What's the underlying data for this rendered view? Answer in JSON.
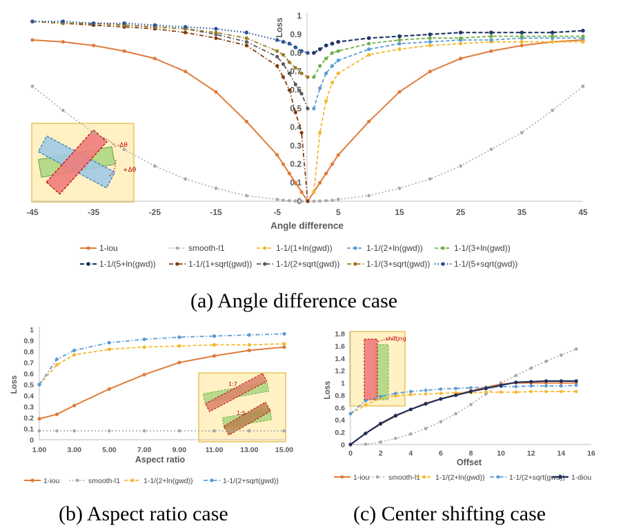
{
  "captions": {
    "a": "(a) Angle difference case",
    "b": "(b) Aspect ratio case",
    "c": "(c) Center shifting case"
  },
  "chart_data": [
    {
      "id": "a",
      "type": "line",
      "xlabel": "Angle difference",
      "ylabel": "Loss",
      "xlim": [
        -45,
        45
      ],
      "ylim": [
        0,
        1
      ],
      "xticks": [
        -45,
        -35,
        -25,
        -15,
        -5,
        5,
        15,
        25,
        35,
        45
      ],
      "xtick_labels": [
        "-45",
        "-35",
        "-25",
        "-15",
        "-5",
        "5",
        "15",
        "25",
        "35",
        "45"
      ],
      "yticks": [
        0,
        0.1,
        0.2,
        0.3,
        0.4,
        0.5,
        0.6,
        0.7,
        0.8,
        0.9,
        1
      ],
      "ytick_labels": [
        "0",
        "0.1",
        "0.2",
        "0.3",
        "0.4",
        "0.5",
        "0.6",
        "0.7",
        "0.8",
        "0.9",
        "1"
      ],
      "inset_labels": [
        "-Δθ",
        "+Δθ"
      ],
      "legend_position": "bottom",
      "series": [
        {
          "name": "1-iou",
          "color": "#E07B39",
          "dash": "",
          "width": 2,
          "marker": 2.6,
          "x": [
            -45,
            -40,
            -35,
            -30,
            -25,
            -20,
            -15,
            -10,
            -5,
            -4,
            -3,
            -2,
            -1,
            0,
            1,
            2,
            3,
            4,
            5,
            10,
            15,
            20,
            25,
            30,
            35,
            40,
            45
          ],
          "y": [
            0.87,
            0.86,
            0.84,
            0.81,
            0.77,
            0.7,
            0.59,
            0.43,
            0.25,
            0.2,
            0.15,
            0.1,
            0.05,
            0,
            0.05,
            0.1,
            0.15,
            0.2,
            0.25,
            0.43,
            0.59,
            0.7,
            0.77,
            0.81,
            0.84,
            0.86,
            0.87
          ]
        },
        {
          "name": "smooth-l1",
          "color": "#A8A8A8",
          "dash": "2 3",
          "width": 1.6,
          "marker": 2.4,
          "x": [
            -45,
            -40,
            -35,
            -30,
            -25,
            -20,
            -15,
            -10,
            -5,
            -4,
            -3,
            -2,
            -1,
            0,
            1,
            2,
            3,
            4,
            5,
            10,
            15,
            20,
            25,
            30,
            35,
            40,
            45
          ],
          "y": [
            0.62,
            0.49,
            0.37,
            0.28,
            0.19,
            0.12,
            0.07,
            0.03,
            0.01,
            0.005,
            0.003,
            0.001,
            0,
            0,
            0,
            0.001,
            0.003,
            0.005,
            0.01,
            0.03,
            0.07,
            0.12,
            0.19,
            0.28,
            0.37,
            0.49,
            0.62
          ]
        },
        {
          "name": "1-1/(1+ln(gwd))",
          "color": "#F5B82E",
          "dash": "5 3",
          "width": 1.8,
          "marker": 2.6,
          "x": [
            1,
            2,
            3,
            4,
            5,
            10,
            15,
            20,
            25,
            30,
            35,
            40,
            45
          ],
          "y": [
            0.05,
            0.37,
            0.54,
            0.64,
            0.69,
            0.79,
            0.82,
            0.84,
            0.85,
            0.86,
            0.86,
            0.86,
            0.86
          ]
        },
        {
          "name": "1-1/(2+ln(gwd))",
          "color": "#5B9BD5",
          "dash": "5 3",
          "width": 1.8,
          "marker": 2.6,
          "x": [
            1,
            2,
            3,
            4,
            5,
            10,
            15,
            20,
            25,
            30,
            35,
            40,
            45
          ],
          "y": [
            0.5,
            0.61,
            0.69,
            0.73,
            0.76,
            0.82,
            0.85,
            0.86,
            0.87,
            0.87,
            0.88,
            0.88,
            0.88
          ]
        },
        {
          "name": "1-1/(3+ln(gwd))",
          "color": "#70AD47",
          "dash": "5 3",
          "width": 1.8,
          "marker": 2.6,
          "x": [
            1,
            2,
            3,
            4,
            5,
            10,
            15,
            20,
            25,
            30,
            35,
            40,
            45
          ],
          "y": [
            0.67,
            0.73,
            0.77,
            0.8,
            0.81,
            0.85,
            0.87,
            0.88,
            0.88,
            0.89,
            0.89,
            0.89,
            0.89
          ]
        },
        {
          "name": "1-1/(5+ln(gwd))",
          "color": "#203864",
          "dash": "6 3",
          "width": 2.2,
          "marker": 2.8,
          "x": [
            1,
            2,
            3,
            4,
            5,
            10,
            15,
            20,
            25,
            30,
            35,
            40,
            45
          ],
          "y": [
            0.8,
            0.82,
            0.84,
            0.85,
            0.86,
            0.88,
            0.89,
            0.9,
            0.91,
            0.91,
            0.91,
            0.91,
            0.92
          ]
        },
        {
          "name": "1-1/(1+sqrt(gwd))",
          "color": "#843C0C",
          "dash": "6 3 1.5 3",
          "width": 1.8,
          "marker": 2.6,
          "x": [
            -45,
            -40,
            -35,
            -30,
            -25,
            -20,
            -15,
            -10,
            -5,
            -4,
            -3,
            -2,
            -1,
            0
          ],
          "y": [
            0.97,
            0.96,
            0.95,
            0.94,
            0.93,
            0.91,
            0.88,
            0.84,
            0.73,
            0.67,
            0.6,
            0.48,
            0.37,
            0
          ]
        },
        {
          "name": "1-1/(2+sqrt(gwd))",
          "color": "#595959",
          "dash": "6 3 1.5 3",
          "width": 1.8,
          "marker": 2.6,
          "x": [
            -45,
            -40,
            -35,
            -30,
            -25,
            -20,
            -15,
            -10,
            -5,
            -4,
            -3,
            -2,
            -1,
            0
          ],
          "y": [
            0.97,
            0.96,
            0.96,
            0.95,
            0.94,
            0.93,
            0.9,
            0.86,
            0.78,
            0.74,
            0.69,
            0.63,
            0.58,
            0.5
          ]
        },
        {
          "name": "1-1/(3+sqrt(gwd))",
          "color": "#9C7A1F",
          "dash": "6 3 1.5 3",
          "width": 1.8,
          "marker": 2.6,
          "x": [
            -45,
            -40,
            -35,
            -30,
            -25,
            -20,
            -15,
            -10,
            -5,
            -4,
            -3,
            -2,
            -1,
            0
          ],
          "y": [
            0.97,
            0.96,
            0.96,
            0.95,
            0.94,
            0.93,
            0.91,
            0.88,
            0.81,
            0.79,
            0.75,
            0.72,
            0.69,
            0.67
          ]
        },
        {
          "name": "1-1/(5+sqrt(gwd))",
          "color": "#2E5597",
          "dash": "1.5 3",
          "width": 2.2,
          "marker": 2.8,
          "x": [
            -45,
            -40,
            -35,
            -30,
            -25,
            -20,
            -15,
            -10,
            -5,
            -4,
            -3,
            -2,
            -1,
            0
          ],
          "y": [
            0.97,
            0.97,
            0.96,
            0.96,
            0.95,
            0.94,
            0.93,
            0.91,
            0.87,
            0.86,
            0.85,
            0.83,
            0.81,
            0.8
          ]
        }
      ]
    },
    {
      "id": "b",
      "type": "line",
      "xlabel": "Aspect ratio",
      "ylabel": "Loss",
      "xlim": [
        1,
        15
      ],
      "ylim": [
        0,
        1
      ],
      "xticks": [
        1,
        3,
        5,
        7,
        9,
        11,
        13,
        15
      ],
      "xtick_labels": [
        "1.00",
        "3.00",
        "5.00",
        "7.00",
        "9.00",
        "11.00",
        "13.00",
        "15.00"
      ],
      "yticks": [
        0,
        0.1,
        0.2,
        0.3,
        0.4,
        0.5,
        0.6,
        0.7,
        0.8,
        0.9,
        1
      ],
      "ytick_labels": [
        "0",
        "0.1",
        "0.2",
        "0.3",
        "0.4",
        "0.5",
        "0.6",
        "0.7",
        "0.8",
        "0.9",
        "1"
      ],
      "inset_labels": [
        "1:7",
        "1:5"
      ],
      "legend_position": "bottom",
      "series": [
        {
          "name": "1-iou",
          "color": "#E07B39",
          "dash": "",
          "width": 2,
          "marker": 2.6,
          "x": [
            1,
            2,
            3,
            5,
            7,
            9,
            11,
            13,
            15
          ],
          "y": [
            0.19,
            0.23,
            0.31,
            0.46,
            0.59,
            0.7,
            0.76,
            0.81,
            0.84
          ]
        },
        {
          "name": "smooth-l1",
          "color": "#A8A8A8",
          "dash": "2 3",
          "width": 1.6,
          "marker": 2.4,
          "x": [
            1,
            2,
            3,
            5,
            7,
            9,
            11,
            13,
            15
          ],
          "y": [
            0.08,
            0.08,
            0.08,
            0.08,
            0.08,
            0.08,
            0.08,
            0.08,
            0.08
          ]
        },
        {
          "name": "1-1/(2+ln(gwd))",
          "color": "#F5B82E",
          "dash": "5 3",
          "width": 1.8,
          "marker": 2.6,
          "x": [
            1,
            2,
            3,
            5,
            7,
            9,
            11,
            13,
            15
          ],
          "y": [
            0.5,
            0.68,
            0.77,
            0.82,
            0.84,
            0.85,
            0.86,
            0.86,
            0.87
          ]
        },
        {
          "name": "1-1/(2+sqrt(gwd))",
          "color": "#5B9BD5",
          "dash": "6 3 1.5 3",
          "width": 1.8,
          "marker": 2.6,
          "x": [
            1,
            2,
            3,
            5,
            7,
            9,
            11,
            13,
            15
          ],
          "y": [
            0.5,
            0.73,
            0.81,
            0.88,
            0.91,
            0.93,
            0.94,
            0.95,
            0.96
          ]
        }
      ]
    },
    {
      "id": "c",
      "type": "line",
      "xlabel": "Offset",
      "ylabel": "Loss",
      "xlim": [
        0,
        16
      ],
      "ylim": [
        0,
        1.8
      ],
      "xticks": [
        0,
        2,
        4,
        6,
        8,
        10,
        12,
        14,
        16
      ],
      "xtick_labels": [
        "0",
        "2",
        "4",
        "6",
        "8",
        "10",
        "12",
        "14",
        "16"
      ],
      "yticks": [
        0,
        0.2,
        0.4,
        0.6,
        0.8,
        1,
        1.2,
        1.4,
        1.6,
        1.8
      ],
      "ytick_labels": [
        "0",
        "0.2",
        "0.4",
        "0.6",
        "0.8",
        "1",
        "1.2",
        "1.4",
        "1.6",
        "1.8"
      ],
      "inset_labels": [
        "shifting"
      ],
      "legend_position": "bottom",
      "series": [
        {
          "name": "1-iou",
          "color": "#E07B39",
          "dash": "",
          "width": 2,
          "marker": 2.4,
          "x": [
            0,
            1,
            2,
            3,
            4,
            5,
            6,
            7,
            8,
            9,
            10,
            11,
            12,
            13,
            14,
            15
          ],
          "y": [
            0,
            0.18,
            0.33,
            0.46,
            0.57,
            0.67,
            0.74,
            0.81,
            0.87,
            0.93,
            0.98,
            1.0,
            1.0,
            1.0,
            1.0,
            1.0
          ]
        },
        {
          "name": "smooth-l1",
          "color": "#A8A8A8",
          "dash": "2 3",
          "width": 1.6,
          "marker": 2.4,
          "x": [
            0,
            1,
            2,
            3,
            4,
            5,
            6,
            7,
            8,
            9,
            10,
            11,
            12,
            13,
            14,
            15
          ],
          "y": [
            0,
            0.005,
            0.04,
            0.1,
            0.17,
            0.26,
            0.37,
            0.5,
            0.65,
            0.82,
            1.0,
            1.12,
            1.24,
            1.35,
            1.45,
            1.55
          ]
        },
        {
          "name": "1-1/(2+ln(gwd))",
          "color": "#F5B82E",
          "dash": "5 3",
          "width": 1.8,
          "marker": 2.4,
          "x": [
            0,
            1,
            2,
            3,
            4,
            5,
            6,
            7,
            8,
            9,
            10,
            11,
            12,
            13,
            14,
            15
          ],
          "y": [
            0.5,
            0.64,
            0.75,
            0.79,
            0.81,
            0.82,
            0.83,
            0.84,
            0.84,
            0.85,
            0.85,
            0.85,
            0.86,
            0.86,
            0.86,
            0.86
          ]
        },
        {
          "name": "1-1/(2+sqrt(gwd))",
          "color": "#5B9BD5",
          "dash": "6 3 1.5 3",
          "width": 1.8,
          "marker": 2.4,
          "x": [
            0,
            1,
            2,
            3,
            4,
            5,
            6,
            7,
            8,
            9,
            10,
            11,
            12,
            13,
            14,
            15
          ],
          "y": [
            0.5,
            0.71,
            0.78,
            0.83,
            0.86,
            0.88,
            0.9,
            0.91,
            0.92,
            0.93,
            0.94,
            0.94,
            0.95,
            0.95,
            0.95,
            0.96
          ]
        },
        {
          "name": "1-diou",
          "color": "#1F2D5C",
          "dash": "",
          "width": 2.2,
          "marker": 2.6,
          "x": [
            0,
            1,
            2,
            3,
            4,
            5,
            6,
            7,
            8,
            9,
            10,
            11,
            12,
            13,
            14,
            15
          ],
          "y": [
            0,
            0.18,
            0.34,
            0.47,
            0.57,
            0.66,
            0.74,
            0.8,
            0.86,
            0.91,
            0.96,
            1.01,
            1.02,
            1.03,
            1.03,
            1.03
          ]
        }
      ]
    }
  ]
}
